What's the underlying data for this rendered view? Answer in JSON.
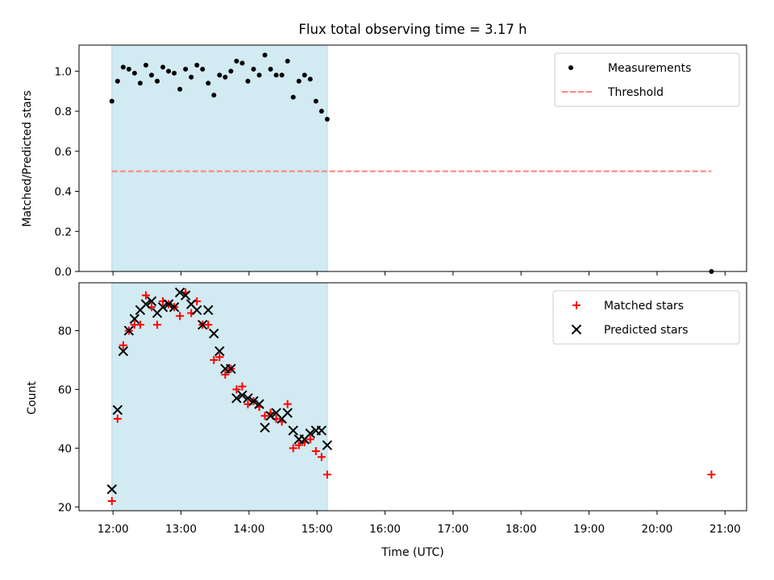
{
  "chart_data": [
    {
      "type": "scatter",
      "title": "Flux total observing time = 3.17 h",
      "xlabel": "",
      "ylabel": "Matched/Predicted stars",
      "ylim": [
        0.0,
        1.13
      ],
      "yticks": [
        0.0,
        0.2,
        0.4,
        0.6,
        0.8,
        1.0
      ],
      "ytick_labels": [
        "0.0",
        "0.2",
        "0.4",
        "0.6",
        "0.8",
        "1.0"
      ],
      "grid": false,
      "legend_position": "top-right",
      "shaded_interval": [
        "11:59",
        "15:09"
      ],
      "shade_color": "#add8e6",
      "series": [
        {
          "name": "Measurements",
          "marker": "dot",
          "color": "#000000",
          "x": [
            "11:59",
            "12:04",
            "12:09",
            "12:14",
            "12:19",
            "12:24",
            "12:29",
            "12:34",
            "12:39",
            "12:44",
            "12:49",
            "12:54",
            "12:59",
            "13:04",
            "13:09",
            "13:14",
            "13:19",
            "13:24",
            "13:29",
            "13:34",
            "13:39",
            "13:44",
            "13:49",
            "13:54",
            "13:59",
            "14:04",
            "14:09",
            "14:14",
            "14:19",
            "14:24",
            "14:29",
            "14:34",
            "14:39",
            "14:44",
            "14:49",
            "14:54",
            "14:59",
            "15:04",
            "15:09",
            "20:48"
          ],
          "y": [
            0.85,
            0.95,
            1.02,
            1.01,
            0.99,
            0.94,
            1.03,
            0.98,
            0.95,
            1.02,
            1.0,
            0.99,
            0.91,
            1.01,
            0.97,
            1.03,
            1.01,
            0.94,
            0.88,
            0.98,
            0.97,
            1.0,
            1.05,
            1.04,
            0.95,
            1.01,
            0.98,
            1.08,
            1.01,
            0.98,
            0.98,
            1.05,
            0.87,
            0.95,
            0.98,
            0.96,
            0.85,
            0.8,
            0.76,
            0.0
          ]
        },
        {
          "name": "Threshold",
          "style": "dashed",
          "color": "#ff7f7f",
          "x": [
            "11:59",
            "20:48"
          ],
          "y": [
            0.5,
            0.5
          ]
        }
      ]
    },
    {
      "type": "scatter",
      "title": "",
      "xlabel": "Time (UTC)",
      "ylabel": "Count",
      "ylim": [
        18.7,
        96.3
      ],
      "yticks": [
        20,
        40,
        60,
        80
      ],
      "ytick_labels": [
        "20",
        "40",
        "60",
        "80"
      ],
      "xlim": [
        "11:30",
        "21:19"
      ],
      "xticks": [
        "12:00",
        "13:00",
        "14:00",
        "15:00",
        "16:00",
        "17:00",
        "18:00",
        "19:00",
        "20:00",
        "21:00"
      ],
      "grid": false,
      "legend_position": "top-right",
      "shaded_interval": [
        "11:59",
        "15:09"
      ],
      "shade_color": "#add8e6",
      "series": [
        {
          "name": "Matched stars",
          "marker": "plus",
          "color": "#ff0000",
          "x": [
            "11:59",
            "12:04",
            "12:09",
            "12:14",
            "12:19",
            "12:24",
            "12:29",
            "12:34",
            "12:39",
            "12:44",
            "12:49",
            "12:54",
            "12:59",
            "13:04",
            "13:09",
            "13:14",
            "13:19",
            "13:24",
            "13:29",
            "13:34",
            "13:39",
            "13:44",
            "13:49",
            "13:54",
            "13:59",
            "14:04",
            "14:09",
            "14:14",
            "14:19",
            "14:24",
            "14:29",
            "14:34",
            "14:39",
            "14:44",
            "14:49",
            "14:54",
            "14:59",
            "15:04",
            "15:09",
            "20:48"
          ],
          "y": [
            22,
            50,
            75,
            80,
            82,
            82,
            92,
            88,
            82,
            90,
            89,
            88,
            85,
            93,
            86,
            90,
            82,
            82,
            70,
            71,
            65,
            67,
            60,
            61,
            55,
            56,
            54,
            51,
            52,
            50,
            49,
            55,
            40,
            41,
            42,
            43,
            39,
            37,
            31,
            31
          ]
        },
        {
          "name": "Predicted stars",
          "marker": "x",
          "color": "#000000",
          "x": [
            "11:59",
            "12:04",
            "12:09",
            "12:14",
            "12:19",
            "12:24",
            "12:29",
            "12:34",
            "12:39",
            "12:44",
            "12:49",
            "12:54",
            "12:59",
            "13:04",
            "13:09",
            "13:14",
            "13:19",
            "13:24",
            "13:29",
            "13:34",
            "13:39",
            "13:44",
            "13:49",
            "13:54",
            "13:59",
            "14:04",
            "14:09",
            "14:14",
            "14:19",
            "14:24",
            "14:29",
            "14:34",
            "14:39",
            "14:44",
            "14:49",
            "14:54",
            "14:59",
            "15:04",
            "15:09"
          ],
          "y": [
            26,
            53,
            73,
            80,
            84,
            87,
            89,
            90,
            86,
            88,
            89,
            88,
            93,
            92,
            89,
            87,
            82,
            87,
            79,
            73,
            67,
            67,
            57,
            58,
            57,
            56,
            55,
            47,
            51,
            52,
            50,
            52,
            46,
            43,
            43,
            45,
            46,
            46,
            41
          ]
        }
      ]
    }
  ]
}
